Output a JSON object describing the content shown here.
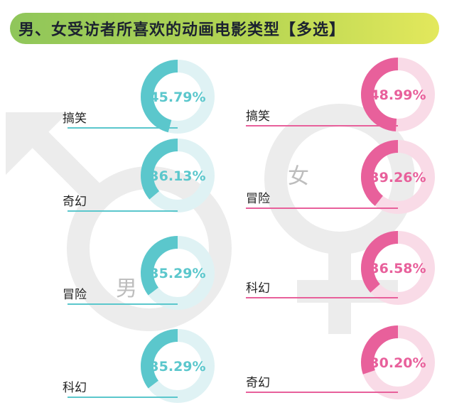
{
  "title": "男、女受访者所喜欢的动画电影类型【多选】",
  "colors": {
    "male": "#5bc7cc",
    "male_light": "#dff2f4",
    "female": "#e8609b",
    "female_light": "#f9dbe7",
    "symbol_gray": "#ececec"
  },
  "symbols": {
    "male": "男",
    "female": "女"
  },
  "chart_data": [
    {
      "type": "pie",
      "group": "male",
      "categories": [
        "搞笑",
        "奇幻",
        "冒险",
        "科幻"
      ],
      "values": [
        45.79,
        36.13,
        35.29,
        35.29
      ],
      "labels": [
        "45.79%",
        "36.13%",
        "35.29%",
        "35.29%"
      ],
      "unit": "%"
    },
    {
      "type": "pie",
      "group": "female",
      "categories": [
        "搞笑",
        "冒险",
        "科幻",
        "奇幻"
      ],
      "values": [
        48.99,
        39.26,
        36.58,
        30.2
      ],
      "labels": [
        "48.99%",
        "39.26%",
        "36.58%",
        "30.20%"
      ],
      "unit": "%"
    }
  ]
}
